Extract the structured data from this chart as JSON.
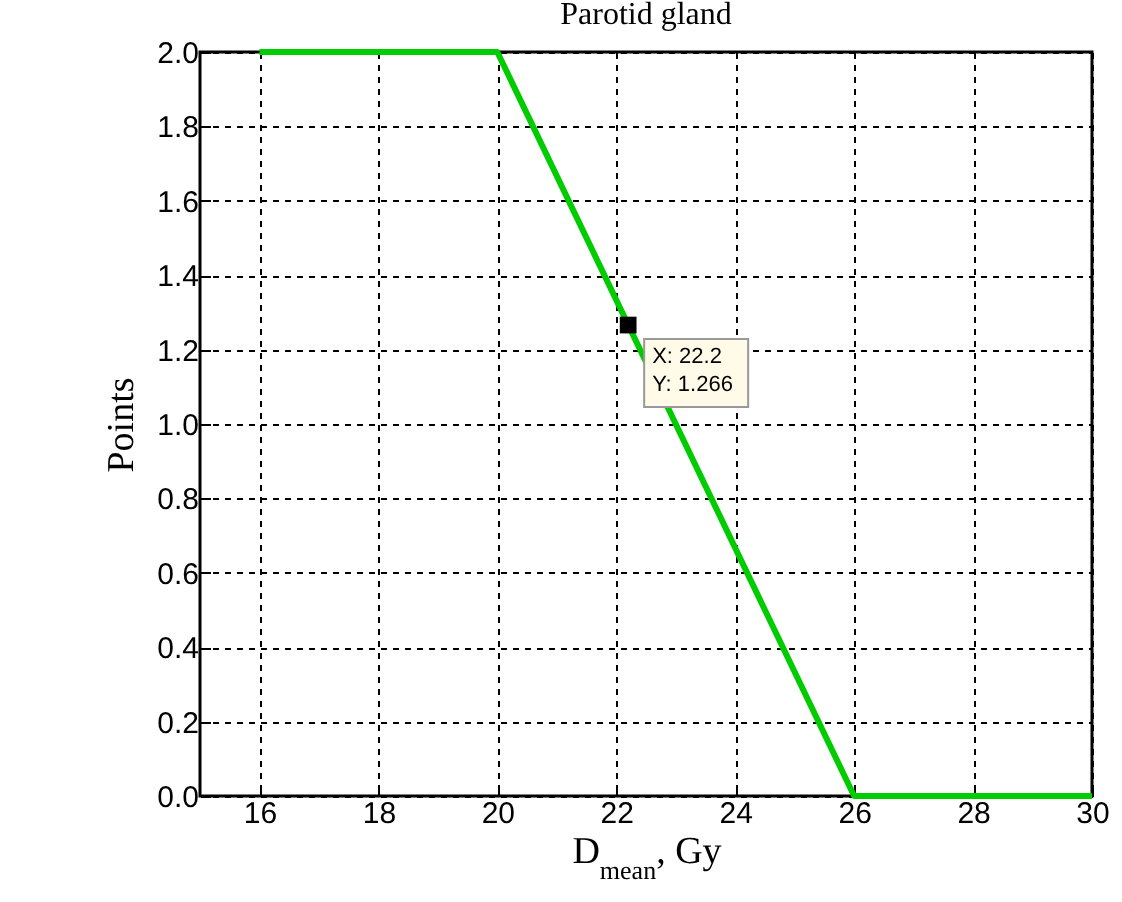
{
  "chart_data": {
    "type": "line",
    "title": "Parotid gland",
    "xlabel": "D$_{mean}$, Gy",
    "ylabel": "Points",
    "x": [
      16,
      20,
      26,
      30
    ],
    "series": [
      {
        "color": "#00cc00",
        "values": [
          2,
          2,
          0,
          0
        ]
      }
    ],
    "xlim": [
      15,
      30
    ],
    "xticks": [
      16,
      18,
      20,
      22,
      24,
      26,
      28,
      30
    ],
    "ylim": [
      0,
      2
    ],
    "yticks": [
      {
        "value": 0,
        "label": "0.0"
      },
      0.2,
      0.4,
      0.6,
      0.8,
      {
        "value": 1,
        "label": "1.0"
      },
      1.2,
      1.4,
      1.6,
      1.8,
      {
        "value": 2,
        "label": "2.0"
      }
    ],
    "grid": true,
    "marker": "none",
    "line_style": "solid",
    "annotations": [
      {
        "text": "X: 22.2\nY: 1.266",
        "x": 22.2,
        "y": 1.266
      }
    ]
  }
}
